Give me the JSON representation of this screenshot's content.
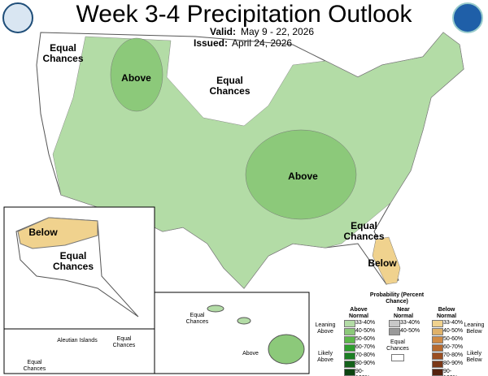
{
  "header": {
    "title": "Week 3-4 Precipitation Outlook",
    "valid_label": "Valid:",
    "valid_dates": "May 9 - 22, 2026",
    "issued_label": "Issued:",
    "issued_date": "April 24, 2026"
  },
  "map_labels": [
    "Equal Chances",
    "Above",
    "Equal Chances",
    "Above",
    "Equal Chances",
    "Below"
  ],
  "alaska_labels": [
    "Below",
    "Equal Chances",
    "Aleutian Islands",
    "Equal Chances",
    "Equal Chances"
  ],
  "hawaii_labels": [
    "Equal Chances",
    "Above"
  ],
  "legend": {
    "title": "Probability (Percent Chance)",
    "above": {
      "heading": "Above Normal",
      "rows": [
        {
          "label": "33-40%",
          "color": "#b3dca6"
        },
        {
          "label": "40-50%",
          "color": "#8cc97a"
        },
        {
          "label": "50-60%",
          "color": "#5cb84a"
        },
        {
          "label": "60-70%",
          "color": "#2e9e2e"
        },
        {
          "label": "70-80%",
          "color": "#1b7f24"
        },
        {
          "label": "80-90%",
          "color": "#14621b"
        },
        {
          "label": "90-100%",
          "color": "#0b4410"
        }
      ]
    },
    "near": {
      "heading": "Near Normal",
      "rows": [
        {
          "label": "33-40%",
          "color": "#c8c8c8"
        },
        {
          "label": "40-50%",
          "color": "#9a9a9a"
        }
      ],
      "equal": "Equal Chances"
    },
    "below": {
      "heading": "Below Normal",
      "rows": [
        {
          "label": "33-40%",
          "color": "#f0d28e"
        },
        {
          "label": "40-50%",
          "color": "#e0b26a"
        },
        {
          "label": "50-60%",
          "color": "#d08a44"
        },
        {
          "label": "60-70%",
          "color": "#b86a2e"
        },
        {
          "label": "70-80%",
          "color": "#9a4e22"
        },
        {
          "label": "80-90%",
          "color": "#7a3818"
        },
        {
          "label": "90-100%",
          "color": "#55220e"
        }
      ]
    },
    "side": [
      "Leaning Above",
      "Likely Above",
      "Leaning Below",
      "Likely Below"
    ]
  }
}
